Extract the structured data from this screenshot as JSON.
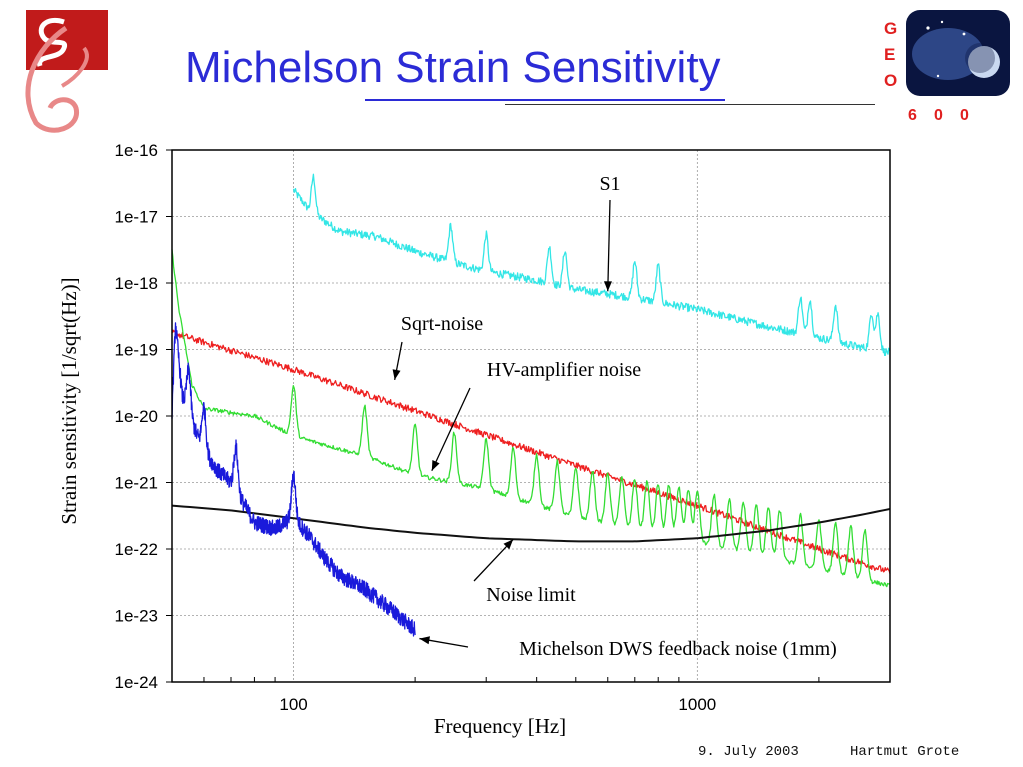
{
  "slide": {
    "title": "Michelson Strain Sensitivity",
    "footer_date": "9. July 2003",
    "footer_author": "Hartmut Grote",
    "logo_right_text": [
      "G",
      "E",
      "O",
      "6",
      "0",
      "0"
    ]
  },
  "chart_data": {
    "type": "line",
    "title": "",
    "xlabel": "Frequency [Hz]",
    "ylabel": "Strain sensitivity [1/sqrt(Hz)]",
    "xscale": "log",
    "yscale": "log",
    "xlim": [
      50,
      3000
    ],
    "ylim": [
      1e-24,
      1e-16
    ],
    "x_ticks": [
      100,
      1000
    ],
    "x_tick_labels": [
      "100",
      "1000"
    ],
    "y_ticks": [
      1e-24,
      1e-23,
      1e-22,
      1e-21,
      1e-20,
      1e-19,
      1e-18,
      1e-17,
      1e-16
    ],
    "y_tick_labels": [
      "1e-24",
      "1e-23",
      "1e-22",
      "1e-21",
      "1e-20",
      "1e-19",
      "1e-18",
      "1e-17",
      "1e-16"
    ],
    "grid": true,
    "series": [
      {
        "name": "S1",
        "color": "#33e6e6",
        "x": [
          100,
          110,
          130,
          160,
          200,
          250,
          300,
          400,
          500,
          700,
          1000,
          1500,
          2000,
          2500,
          3000
        ],
        "y": [
          2.5e-17,
          1.2e-17,
          6e-18,
          5e-18,
          3e-18,
          2e-18,
          1.5e-18,
          1.1e-18,
          8e-19,
          6e-19,
          4e-19,
          2.2e-19,
          1.5e-19,
          1.1e-19,
          9e-20
        ],
        "peaks_x": [
          112,
          245,
          300,
          430,
          470,
          700,
          800,
          1800,
          1900,
          2200,
          2700,
          2800
        ]
      },
      {
        "name": "Sqrt-noise",
        "color": "#ee2020",
        "x": [
          50,
          100,
          200,
          500,
          1000,
          2000,
          3000
        ],
        "y": [
          1.8e-19,
          5e-20,
          1.2e-20,
          1.8e-21,
          4.5e-22,
          1e-22,
          4.5e-23
        ]
      },
      {
        "name": "HV-amplifier noise",
        "color": "#33dd33",
        "x": [
          50,
          52,
          56,
          60,
          80,
          100,
          150,
          200,
          300,
          500,
          1000,
          2000,
          3000
        ],
        "y": [
          3e-18,
          4e-19,
          3e-20,
          1.3e-20,
          1e-20,
          5e-21,
          2.5e-21,
          1.3e-21,
          8e-22,
          3e-22,
          1.3e-22,
          5e-23,
          2.8e-23
        ],
        "peaks_x": [
          100,
          150,
          200,
          250,
          300,
          350,
          400,
          450,
          500,
          550,
          600,
          650,
          700,
          750,
          800,
          850,
          900,
          950,
          1000,
          1100,
          1200,
          1300,
          1400,
          1500,
          1600,
          1800,
          2000,
          2200,
          2400,
          2600
        ]
      },
      {
        "name": "Noise limit",
        "color": "#111111",
        "x": [
          50,
          70,
          100,
          150,
          200,
          300,
          500,
          700,
          1000,
          1500,
          2000,
          2500,
          3000
        ],
        "y": [
          4.5e-22,
          3.8e-22,
          2.9e-22,
          2.1e-22,
          1.75e-22,
          1.45e-22,
          1.3e-22,
          1.3e-22,
          1.45e-22,
          1.9e-22,
          2.5e-22,
          3.2e-22,
          4e-22
        ]
      },
      {
        "name": "Michelson DWS feedback noise (1mm)",
        "color": "#1a1adb",
        "x": [
          50,
          51,
          53,
          56,
          60,
          65,
          70,
          75,
          80,
          90,
          100,
          110,
          120,
          130,
          150,
          175,
          200
        ],
        "y": [
          1.2e-20,
          2.5e-19,
          2e-20,
          8e-21,
          3e-21,
          1.5e-21,
          1e-21,
          5e-22,
          2.5e-22,
          2e-22,
          3e-22,
          1.5e-22,
          7e-23,
          4e-23,
          2.5e-23,
          1.2e-23,
          6e-24
        ],
        "peaks_x": [
          55,
          60,
          72,
          100
        ]
      }
    ],
    "annotations": [
      {
        "text": "S1",
        "arrow_to_x": 600,
        "arrow_to_y": 7.5e-19
      },
      {
        "text": "Sqrt-noise",
        "arrow_to_x": 178,
        "arrow_to_y": 3.5e-20
      },
      {
        "text": "HV-amplifier noise",
        "arrow_to_x": 220,
        "arrow_to_y": 1.5e-21
      },
      {
        "text": "Noise limit",
        "arrow_to_x": 350,
        "arrow_to_y": 1.4e-22
      },
      {
        "text": "Michelson DWS feedback noise (1mm)",
        "arrow_to_x": 205,
        "arrow_to_y": 4.5e-24
      }
    ]
  }
}
